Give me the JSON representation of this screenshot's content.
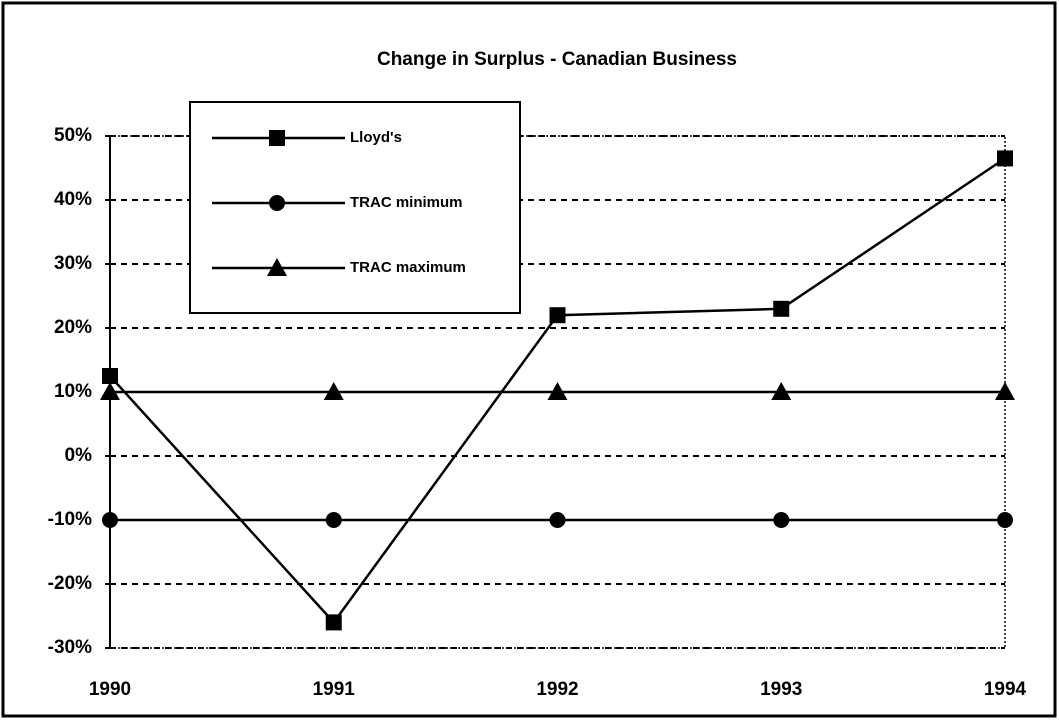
{
  "chart_data": {
    "type": "line",
    "title": "Change in Surplus - Canadian Business",
    "categories": [
      "1990",
      "1991",
      "1992",
      "1993",
      "1994"
    ],
    "series": [
      {
        "name": "Lloyd's",
        "color": "#000000",
        "marker": "square",
        "values": [
          12.5,
          -26,
          22,
          23,
          46.5
        ]
      },
      {
        "name": "TRAC minimum",
        "color": "#000000",
        "marker": "circle",
        "values": [
          -10,
          -10,
          -10,
          -10,
          -10
        ]
      },
      {
        "name": "TRAC maximum",
        "color": "#000000",
        "marker": "triangle",
        "values": [
          10,
          10,
          10,
          10,
          10
        ]
      }
    ],
    "ylim": [
      -30,
      50
    ],
    "yticks": [
      {
        "value": -30,
        "label": "-30%"
      },
      {
        "value": -20,
        "label": "-20%"
      },
      {
        "value": -10,
        "label": "-10%"
      },
      {
        "value": 0,
        "label": "0%"
      },
      {
        "value": 10,
        "label": "10%"
      },
      {
        "value": 20,
        "label": "20%"
      },
      {
        "value": 30,
        "label": "30%"
      },
      {
        "value": 40,
        "label": "40%"
      },
      {
        "value": 50,
        "label": "50%"
      }
    ],
    "grid": true,
    "legend": "upper left"
  }
}
